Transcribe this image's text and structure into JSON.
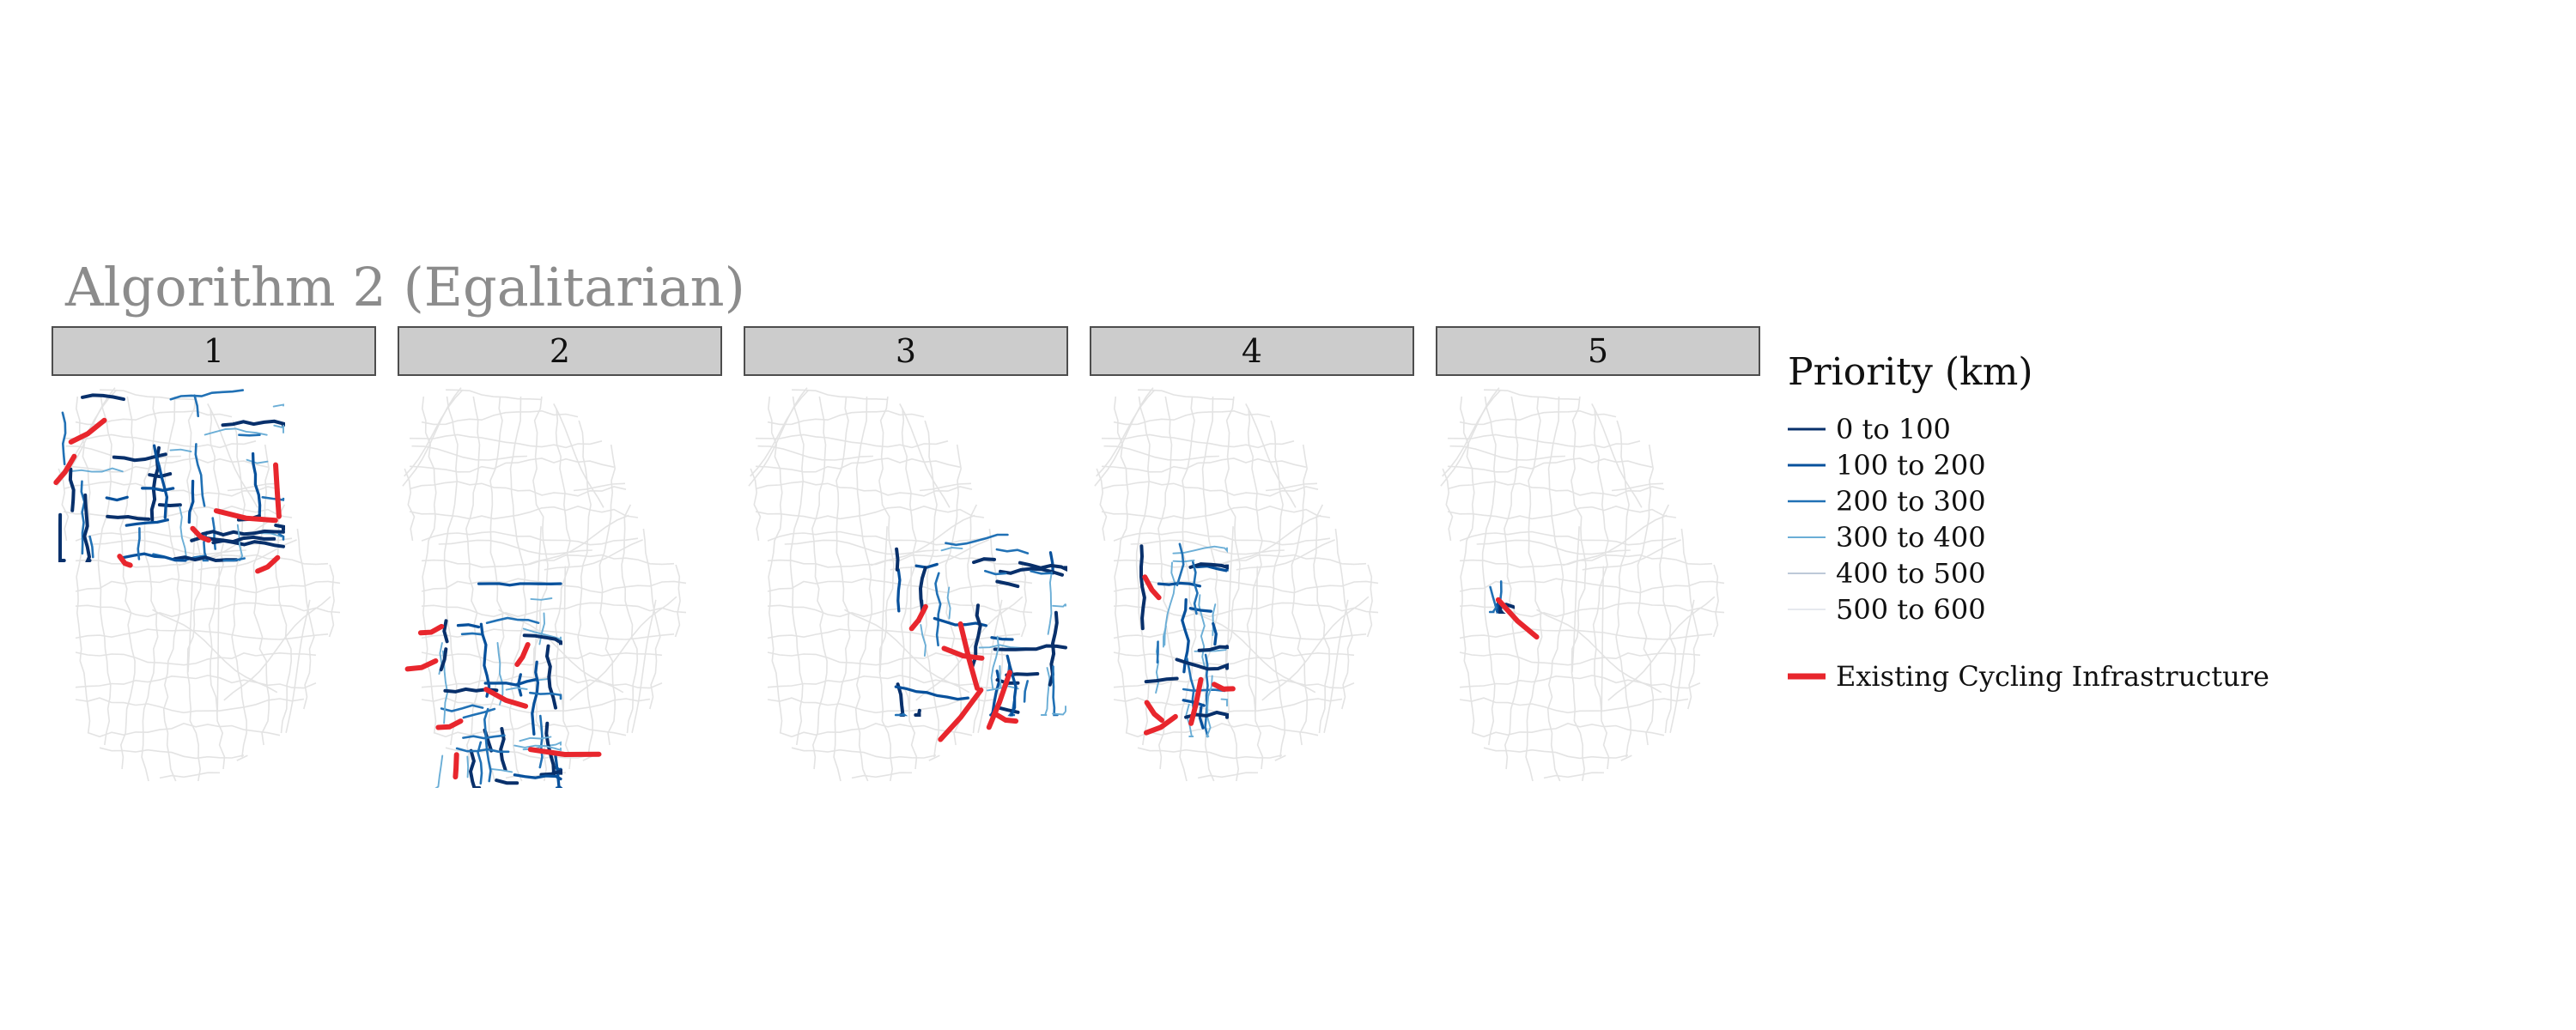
{
  "title": "Algorithm 2 (Egalitarian)",
  "panels": [
    {
      "label": "1"
    },
    {
      "label": "2"
    },
    {
      "label": "3"
    },
    {
      "label": "4"
    },
    {
      "label": "5"
    }
  ],
  "legend": {
    "title": "Priority (km)",
    "items": [
      {
        "label": "0 to 100",
        "color": "#08306b"
      },
      {
        "label": "100 to 200",
        "color": "#08519c"
      },
      {
        "label": "200 to 300",
        "color": "#2171b5"
      },
      {
        "label": "300 to 400",
        "color": "#6baed6"
      },
      {
        "label": "400 to 500",
        "color": "#bdc9d8"
      },
      {
        "label": "500 to 600",
        "color": "#e6e9ee"
      }
    ],
    "existing": {
      "label": "Existing Cycling Infrastructure",
      "color": "#e8262d"
    }
  },
  "colors": {
    "base_network": "#e3e3e3",
    "title_gray": "#8c8c8c",
    "strip_fill": "#cccccc"
  }
}
